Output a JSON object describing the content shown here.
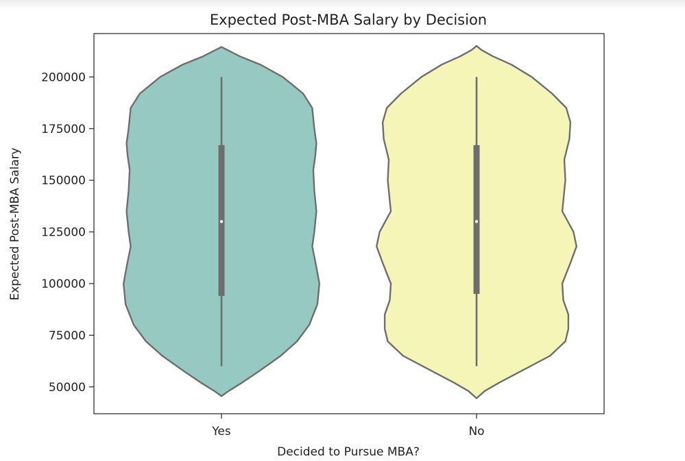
{
  "chart_data": {
    "type": "violin",
    "title": "Expected Post-MBA Salary by Decision",
    "xlabel": "Decided to Pursue MBA?",
    "ylabel": "Expected Post-MBA Salary",
    "categories": [
      "Yes",
      "No"
    ],
    "ylim": [
      37000,
      221000
    ],
    "yticks": [
      50000,
      75000,
      100000,
      125000,
      150000,
      175000,
      200000
    ],
    "ytick_labels": [
      "50000",
      "75000",
      "100000",
      "125000",
      "150000",
      "175000",
      "200000"
    ],
    "grid": false,
    "legend": "none",
    "violins": [
      {
        "category": "Yes",
        "color": "#96c9c2",
        "min": 60000,
        "q1": 94000,
        "median": 130000,
        "q3": 167000,
        "max": 200000,
        "density_y": [
          45500,
          48000,
          52000,
          58000,
          65000,
          72000,
          80000,
          90000,
          100000,
          108000,
          118000,
          125000,
          135000,
          145000,
          155000,
          162000,
          168000,
          175000,
          185000,
          192000,
          200000,
          206000,
          210000,
          213000,
          214500
        ],
        "density_half_width": [
          0.0,
          0.07,
          0.2,
          0.38,
          0.58,
          0.74,
          0.86,
          0.94,
          0.96,
          0.93,
          0.89,
          0.91,
          0.93,
          0.91,
          0.9,
          0.92,
          0.93,
          0.91,
          0.89,
          0.8,
          0.6,
          0.38,
          0.18,
          0.06,
          0.0
        ]
      },
      {
        "category": "No",
        "color": "#f5f5b8",
        "min": 60000,
        "q1": 95000,
        "median": 130000,
        "q3": 167000,
        "max": 200000,
        "density_y": [
          44500,
          48000,
          52000,
          58000,
          65000,
          72000,
          78000,
          85000,
          92000,
          100000,
          110000,
          118000,
          125000,
          135000,
          150000,
          160000,
          170000,
          178000,
          185000,
          192000,
          200000,
          206000,
          210000,
          213000,
          215000
        ],
        "density_half_width": [
          0.0,
          0.08,
          0.22,
          0.45,
          0.72,
          0.87,
          0.9,
          0.9,
          0.85,
          0.84,
          0.92,
          0.98,
          0.95,
          0.84,
          0.87,
          0.86,
          0.91,
          0.92,
          0.88,
          0.74,
          0.54,
          0.34,
          0.16,
          0.05,
          0.0
        ]
      }
    ]
  }
}
